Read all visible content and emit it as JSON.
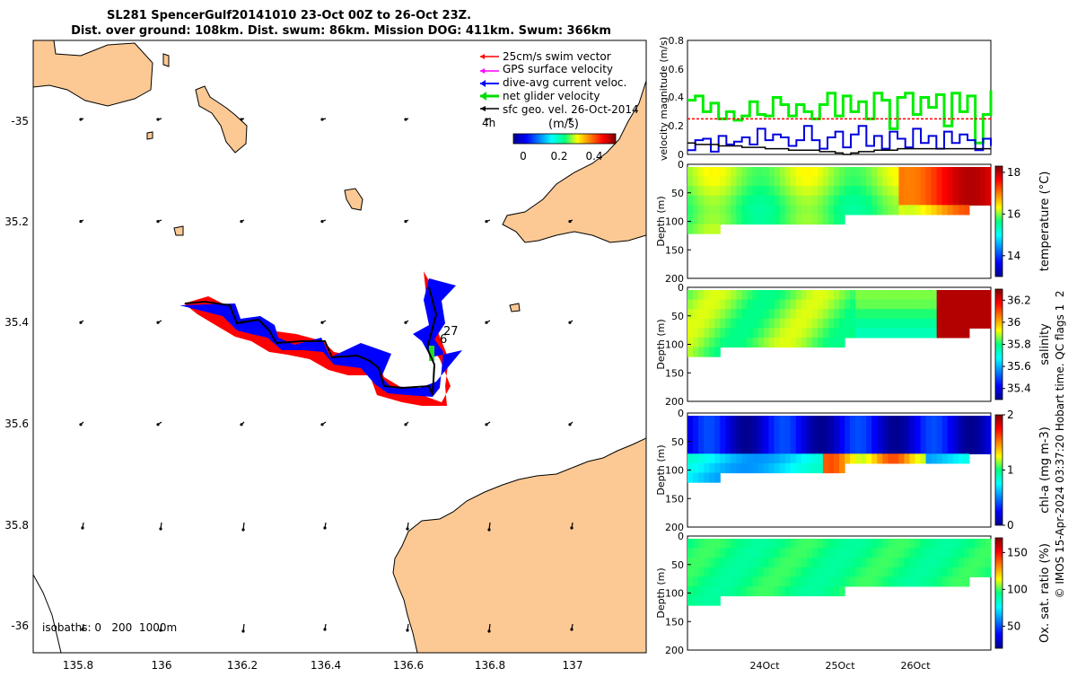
{
  "title": {
    "line1": "SL281 SpencerGulf20141010 23-Oct 00Z to 26-Oct 23Z.",
    "line2": "Dist. over ground: 108km. Dist. swum: 86km. Mission DOG: 411km. Swum: 366km"
  },
  "map": {
    "x_ticks": [
      "135.8",
      "136",
      "136.2",
      "136.4",
      "136.6",
      "136.8",
      "137"
    ],
    "y_ticks": [
      "-35",
      "35.2",
      "35.4",
      "35.6",
      "35.8",
      "-36"
    ],
    "legend": [
      {
        "label": "25cm/s swim vector",
        "color": "#ff0000"
      },
      {
        "label": "GPS surface velocity",
        "color": "#ff00ff"
      },
      {
        "label": "dive-avg current veloc.",
        "color": "#0000ff"
      },
      {
        "label": "net glider velocity",
        "color": "#00dd00"
      },
      {
        "label": "sfc geo. vel. 26-Oct-2014",
        "color": "#000000"
      }
    ],
    "scale_label": "4h",
    "colorbar_title": "(m/s)",
    "colorbar_ticks": [
      "0",
      "0.2",
      "0.4"
    ],
    "track_labels": [
      "27",
      "6"
    ],
    "isobaths_label": "isobaths: 0   200  1000m",
    "land_color": "#fcc994"
  },
  "chart_data": [
    {
      "type": "line",
      "ylabel": "velocity magnitude (m/s)",
      "ylim": [
        0,
        0.8
      ],
      "y_ticks": [
        "0",
        "0.2",
        "0.4",
        "0.6",
        "0.8"
      ],
      "series": [
        {
          "color": "#00ee00",
          "values": [
            0.38,
            0.41,
            0.3,
            0.36,
            0.25,
            0.3,
            0.24,
            0.27,
            0.37,
            0.28,
            0.27,
            0.4,
            0.35,
            0.27,
            0.35,
            0.3,
            0.25,
            0.35,
            0.43,
            0.27,
            0.41,
            0.3,
            0.37,
            0.25,
            0.43,
            0.38,
            0.18,
            0.4,
            0.43,
            0.28,
            0.4,
            0.33,
            0.42,
            0.2,
            0.43,
            0.3,
            0.41,
            0.08,
            0.28,
            0.45
          ]
        },
        {
          "color": "#ff0000",
          "values": [
            0.25,
            0.25,
            0.25,
            0.25,
            0.25,
            0.25,
            0.25,
            0.25,
            0.25,
            0.25,
            0.25,
            0.25,
            0.25,
            0.25,
            0.25,
            0.25,
            0.25,
            0.25,
            0.25,
            0.25,
            0.25,
            0.25,
            0.25,
            0.25,
            0.25,
            0.25,
            0.25,
            0.25,
            0.25,
            0.25,
            0.25,
            0.25,
            0.25,
            0.25,
            0.25,
            0.25,
            0.25,
            0.25,
            0.25,
            0.25
          ]
        },
        {
          "color": "#0000dd",
          "values": [
            0.03,
            0.1,
            0.11,
            0.02,
            0.13,
            0.07,
            0.09,
            0.12,
            0.07,
            0.18,
            0.1,
            0.14,
            0.12,
            0.06,
            0.1,
            0.2,
            0.1,
            0.04,
            0.12,
            0.16,
            0.05,
            0.14,
            0.2,
            0.06,
            0.13,
            0.04,
            0.16,
            0.11,
            0.05,
            0.18,
            0.08,
            0.13,
            0.04,
            0.16,
            0.08,
            0.14,
            0.1,
            0.03,
            0.11,
            0.06
          ]
        },
        {
          "color": "#000000",
          "values": [
            0.08,
            0.07,
            0.07,
            0.07,
            0.06,
            0.06,
            0.06,
            0.05,
            0.05,
            0.05,
            0.04,
            0.04,
            0.04,
            0.03,
            0.03,
            0.03,
            0.03,
            0.02,
            0.02,
            0.01,
            0.0,
            0.01,
            0.02,
            0.02,
            0.03,
            0.03,
            0.03,
            0.04,
            0.04,
            0.04,
            0.04,
            0.04,
            0.04,
            0.04,
            0.04,
            0.04,
            0.04,
            0.04,
            0.04,
            0.04
          ]
        }
      ]
    },
    {
      "type": "heatmap",
      "ylabel": "Depth (m)",
      "cbar_label": "temperature (°C)",
      "cbar_ticks": [
        "14",
        "16",
        "18"
      ],
      "clim": [
        13,
        18.3
      ],
      "ylim": [
        0,
        200
      ],
      "y_ticks": [
        "0",
        "50",
        "100",
        "150",
        "200"
      ]
    },
    {
      "type": "heatmap",
      "ylabel": "Depth (m)",
      "cbar_label": "salinity",
      "cbar_ticks": [
        "35.4",
        "35.6",
        "35.8",
        "36",
        "36.2"
      ],
      "clim": [
        35.3,
        36.3
      ],
      "ylim": [
        0,
        200
      ],
      "y_ticks": [
        "0",
        "50",
        "100",
        "150",
        "200"
      ]
    },
    {
      "type": "heatmap",
      "ylabel": "Depth (m)",
      "cbar_label": "chl-a (mg m-3)",
      "cbar_ticks": [
        "0",
        "1",
        "2"
      ],
      "clim": [
        0,
        2
      ],
      "ylim": [
        0,
        200
      ],
      "y_ticks": [
        "0",
        "50",
        "100",
        "150",
        "200"
      ]
    },
    {
      "type": "heatmap",
      "ylabel": "Depth (m)",
      "cbar_label": "Ox. sat. ratio (%)",
      "cbar_ticks": [
        "50",
        "100",
        "150"
      ],
      "clim": [
        20,
        170
      ],
      "ylim": [
        0,
        200
      ],
      "y_ticks": [
        "0",
        "50",
        "100",
        "150",
        "200"
      ]
    }
  ],
  "time_ticks": [
    "24Oct",
    "25Oct",
    "26Oct"
  ],
  "credit": "© IMOS 15-Apr-2024 03:37:20 Hobart time. QC flags 1  2"
}
